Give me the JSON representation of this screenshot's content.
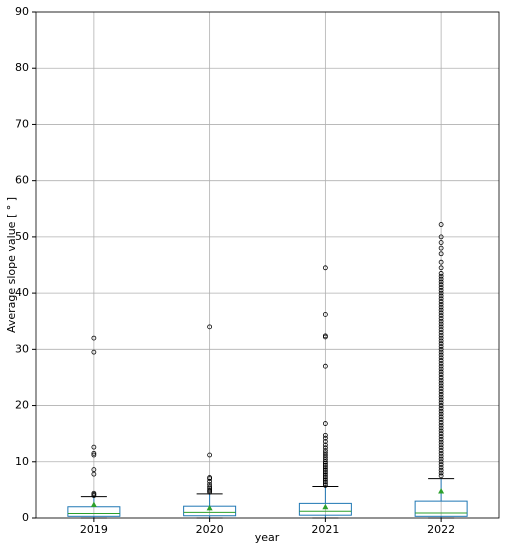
{
  "chart_data": {
    "type": "box",
    "x_label": "year",
    "y_label": "Average slope value [ ° ]",
    "categories": [
      "2019",
      "2020",
      "2021",
      "2022"
    ],
    "ylim": [
      0,
      90
    ],
    "yticks": [
      0,
      10,
      20,
      30,
      40,
      50,
      60,
      70,
      80,
      90
    ],
    "grid": true,
    "box_color": "#1f77b4",
    "median_color": "#2ca02c",
    "mean_color": "#2ca02c",
    "cap_color": "#000000",
    "outlier_color": "#000000",
    "boxes": [
      {
        "low": 0,
        "q1": 0.3,
        "median": 0.8,
        "q3": 2.0,
        "high": 3.8,
        "mean": 2.4,
        "outliers": [
          4.0,
          4.2,
          4.4,
          7.8,
          8.6,
          11.2,
          11.5,
          12.6,
          29.5,
          32.0
        ]
      },
      {
        "low": 0,
        "q1": 0.4,
        "median": 1.0,
        "q3": 2.1,
        "high": 4.3,
        "mean": 1.8,
        "outliers": [
          4.6,
          4.8,
          5.0,
          5.3,
          5.6,
          6.0,
          6.5,
          7.0,
          7.2,
          11.2,
          34.0
        ]
      },
      {
        "low": 0,
        "q1": 0.5,
        "median": 1.2,
        "q3": 2.6,
        "high": 5.6,
        "mean": 2.0,
        "outliers": [
          5.8,
          6.1,
          6.4,
          6.7,
          7.0,
          7.3,
          7.6,
          7.9,
          8.2,
          8.5,
          8.8,
          9.1,
          9.4,
          9.7,
          10.0,
          10.4,
          10.8,
          11.2,
          11.6,
          12.0,
          12.5,
          13.0,
          13.6,
          14.2,
          14.7,
          16.8,
          27.0,
          32.2,
          32.4,
          36.2,
          44.5
        ]
      },
      {
        "low": 0,
        "q1": 0.3,
        "median": 0.9,
        "q3": 3.0,
        "high": 7.0,
        "mean": 4.8,
        "outliers": [
          7.5,
          8.0,
          8.5,
          9.0,
          9.5,
          10.0,
          10.5,
          11.0,
          11.5,
          12.0,
          12.5,
          13.0,
          13.5,
          14.0,
          14.5,
          15.0,
          15.5,
          16.0,
          16.5,
          17.0,
          17.5,
          18.0,
          18.5,
          19.0,
          19.5,
          20.0,
          20.5,
          21.0,
          21.5,
          22.0,
          22.5,
          23.0,
          23.5,
          24.0,
          24.5,
          25.0,
          25.5,
          26.0,
          26.5,
          27.0,
          27.5,
          28.0,
          28.5,
          29.0,
          29.5,
          30.0,
          30.5,
          31.0,
          31.5,
          32.0,
          32.5,
          33.0,
          33.5,
          34.0,
          34.5,
          35.0,
          35.5,
          36.0,
          36.5,
          37.0,
          37.5,
          38.0,
          38.5,
          39.0,
          39.5,
          40.0,
          40.5,
          41.0,
          41.5,
          42.0,
          42.5,
          43.0,
          43.5,
          44.5,
          45.5,
          47.0,
          48.0,
          49.0,
          50.0,
          52.2
        ]
      }
    ]
  }
}
